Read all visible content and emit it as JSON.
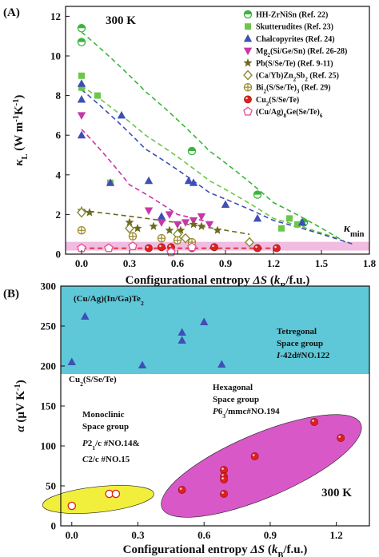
{
  "chart_data": [
    {
      "panel_label": "(A)",
      "type": "scatter",
      "annotation": "300 K",
      "xlabel": "Configurational entropy ΔS (kB/f.u.)",
      "ylabel": "κL (W m⁻¹K⁻¹)",
      "xlim": [
        -0.1,
        1.8
      ],
      "ylim": [
        0,
        12.5
      ],
      "xticks": [
        "0.0",
        "0.3",
        "0.6",
        "0.9",
        "1.2",
        "1.5",
        "1.8"
      ],
      "yticks": [
        "0",
        "2",
        "4",
        "6",
        "8",
        "10",
        "12"
      ],
      "kappa_min_label": "κmin",
      "kappa_min_value": 0.4,
      "legend_position": "top-right",
      "series": [
        {
          "name": "HH-ZrNiSn (Ref. 22)",
          "color": "#3cb43c",
          "marker": "circle-half",
          "points": [
            [
              0.0,
              11.4
            ],
            [
              0.0,
              10.7
            ],
            [
              0.69,
              5.2
            ],
            [
              1.1,
              3.0
            ],
            [
              1.39,
              1.6
            ]
          ],
          "trend": [
            [
              0.0,
              11.2
            ],
            [
              0.4,
              8.2
            ],
            [
              0.8,
              5.2
            ],
            [
              1.2,
              2.6
            ],
            [
              1.65,
              0.6
            ]
          ]
        },
        {
          "name": "Skutterudites (Ref. 23)",
          "color": "#6cc64a",
          "marker": "square",
          "points": [
            [
              0.0,
              9.0
            ],
            [
              0.0,
              8.4
            ],
            [
              0.1,
              8.0
            ],
            [
              0.18,
              3.6
            ],
            [
              1.25,
              1.3
            ],
            [
              1.3,
              1.8
            ],
            [
              1.35,
              1.5
            ]
          ],
          "trend": [
            [
              0.0,
              8.5
            ],
            [
              0.4,
              6.0
            ],
            [
              0.8,
              3.7
            ],
            [
              1.2,
              1.8
            ],
            [
              1.6,
              0.8
            ]
          ]
        },
        {
          "name": "Chalcopyrites (Ref. 24)",
          "color": "#3e4fb5",
          "marker": "triangle-up",
          "points": [
            [
              0.0,
              8.6
            ],
            [
              0.0,
              7.8
            ],
            [
              0.0,
              6.0
            ],
            [
              0.18,
              3.6
            ],
            [
              0.25,
              7.0
            ],
            [
              0.42,
              3.7
            ],
            [
              0.5,
              1.9
            ],
            [
              0.67,
              3.7
            ],
            [
              0.7,
              3.6
            ],
            [
              0.9,
              2.5
            ],
            [
              1.1,
              1.8
            ],
            [
              1.38,
              1.6
            ]
          ],
          "trend": [
            [
              0.0,
              8.3
            ],
            [
              0.4,
              5.3
            ],
            [
              0.8,
              3.1
            ],
            [
              1.2,
              1.7
            ],
            [
              1.7,
              0.5
            ]
          ]
        },
        {
          "name": "Mg2(Si/Ge/Sn) (Ref. 26-28)",
          "color": "#c637a8",
          "marker": "triangle-down",
          "points": [
            [
              0.0,
              7.0
            ],
            [
              0.42,
              2.2
            ],
            [
              0.5,
              1.6
            ],
            [
              0.55,
              2.0
            ],
            [
              0.6,
              1.5
            ],
            [
              0.65,
              1.6
            ],
            [
              0.7,
              1.7
            ],
            [
              0.75,
              1.9
            ],
            [
              0.8,
              1.5
            ]
          ],
          "trend": [
            [
              0.0,
              6.3
            ],
            [
              0.3,
              3.5
            ],
            [
              0.6,
              2.0
            ],
            [
              0.8,
              1.6
            ]
          ]
        },
        {
          "name": "Pb(S/Se/Te) (Ref. 9-11)",
          "color": "#6b6a1e",
          "marker": "star",
          "points": [
            [
              0.0,
              2.2
            ],
            [
              0.05,
              2.1
            ],
            [
              0.3,
              1.6
            ],
            [
              0.35,
              1.3
            ],
            [
              0.45,
              1.4
            ],
            [
              0.55,
              1.2
            ],
            [
              0.62,
              1.2
            ],
            [
              0.7,
              1.5
            ],
            [
              0.75,
              1.4
            ],
            [
              0.85,
              1.2
            ]
          ],
          "trend": [
            [
              0.0,
              2.2
            ],
            [
              0.5,
              1.7
            ],
            [
              1.05,
              1.0
            ]
          ]
        },
        {
          "name": "(Ca/Yb)Zn2Sb2 (Ref. 25)",
          "color": "#8a8a32",
          "marker": "diamond-open",
          "points": [
            [
              0.0,
              2.1
            ],
            [
              0.3,
              1.3
            ],
            [
              0.6,
              1.0
            ],
            [
              0.65,
              0.8
            ],
            [
              1.05,
              0.6
            ]
          ]
        },
        {
          "name": "Bi2(S/Se/Te)3 (Ref. 29)",
          "color": "#9a8a2a",
          "marker": "circle-plus",
          "points": [
            [
              0.0,
              1.2
            ],
            [
              0.32,
              0.9
            ],
            [
              0.5,
              0.8
            ],
            [
              0.6,
              0.7
            ],
            [
              0.69,
              0.6
            ]
          ]
        },
        {
          "name": "Cu2(S/Se/Te)",
          "color": "#e0201f",
          "marker": "circle",
          "points": [
            [
              0.42,
              0.3
            ],
            [
              0.5,
              0.35
            ],
            [
              0.56,
              0.35
            ],
            [
              0.69,
              0.3
            ],
            [
              0.83,
              0.35
            ],
            [
              1.1,
              0.3
            ],
            [
              1.22,
              0.3
            ]
          ],
          "trend": [
            [
              0.0,
              0.3
            ],
            [
              1.25,
              0.3
            ]
          ]
        },
        {
          "name": "(Cu/Ag)8Ge(Se/Te)6",
          "color": "#e8559a",
          "marker": "pentagon-open",
          "points": [
            [
              0.0,
              0.3
            ],
            [
              0.17,
              0.3
            ],
            [
              0.32,
              0.4
            ],
            [
              0.56,
              0.1
            ],
            [
              0.69,
              0.35
            ]
          ]
        }
      ]
    },
    {
      "panel_label": "(B)",
      "type": "scatter",
      "annotation": "300 K",
      "xlabel": "Configurational entropy ΔS (kB/f.u.)",
      "ylabel": "α (μV K⁻¹)",
      "xlim": [
        -0.05,
        1.35
      ],
      "ylim": [
        0,
        300
      ],
      "xticks": [
        "0.0",
        "0.3",
        "0.6",
        "0.9",
        "1.2"
      ],
      "yticks": [
        "0",
        "50",
        "100",
        "150",
        "200",
        "250",
        "300"
      ],
      "regions": [
        {
          "name": "tetragonal",
          "title": "(Cu/Ag)(In/Ga)Te2",
          "lines": [
            "Tetregonal",
            "Space group",
            "I-42d#NO.122"
          ],
          "color": "#5ec8d8",
          "y_from": 190,
          "y_to": 300
        },
        {
          "name": "hexagonal",
          "lines": [
            "Hexagonal",
            "Space group",
            "P63/mmc#NO.194"
          ],
          "color": "#d958c8"
        },
        {
          "name": "monoclinic",
          "lines": [
            "Monoclinic",
            "Space group",
            "P21/c #NO.14&",
            "C2/c #NO.15"
          ],
          "color": "#f2ef3c"
        }
      ],
      "cu2_label": "Cu2(S/Se/Te)",
      "series": [
        {
          "name": "(Cu/Ag)(In/Ga)Te2",
          "color": "#3e4fb5",
          "marker": "triangle-up",
          "points": [
            [
              0.0,
              205
            ],
            [
              0.06,
              262
            ],
            [
              0.32,
              201
            ],
            [
              0.5,
              242
            ],
            [
              0.5,
              232
            ],
            [
              0.6,
              255
            ],
            [
              0.68,
              202
            ]
          ]
        },
        {
          "name": "Cu2(S/Se/Te) hexagonal",
          "color": "#e0201f",
          "marker": "circle",
          "points": [
            [
              0.5,
              45
            ],
            [
              0.69,
              70
            ],
            [
              0.69,
              62
            ],
            [
              0.69,
              58
            ],
            [
              0.69,
              40
            ],
            [
              0.83,
              87
            ],
            [
              1.1,
              130
            ],
            [
              1.22,
              110
            ]
          ]
        },
        {
          "name": "Cu2(S/Se/Te) monoclinic",
          "color": "#e0201f",
          "marker": "circle-open",
          "points": [
            [
              0.0,
              25
            ],
            [
              0.17,
              40
            ],
            [
              0.2,
              40
            ]
          ]
        }
      ]
    }
  ]
}
